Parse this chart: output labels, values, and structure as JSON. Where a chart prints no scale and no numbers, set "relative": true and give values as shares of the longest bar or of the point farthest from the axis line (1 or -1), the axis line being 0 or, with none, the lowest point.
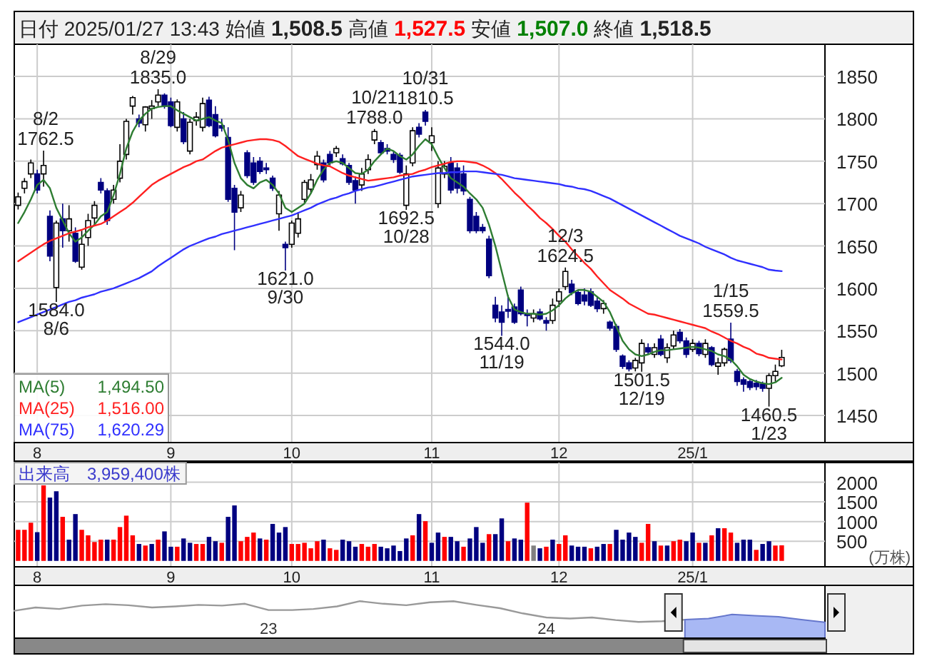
{
  "chart_data": [
    {
      "type": "candlestick",
      "title": "日付 2025/01/27 13:43 始値 1,508.5 高値 1,527.5 安値 1,507.0 終値 1,518.5",
      "categories": [
        null,
        null,
        null,
        "8",
        null,
        null,
        null,
        null,
        null,
        null,
        null,
        null,
        null,
        null,
        null,
        null,
        null,
        null,
        null,
        null,
        null,
        null,
        null,
        null,
        "9",
        null,
        null,
        null,
        null,
        null,
        null,
        null,
        null,
        null,
        null,
        null,
        null,
        null,
        null,
        null,
        null,
        null,
        null,
        "10",
        null,
        null,
        null,
        null,
        null,
        null,
        null,
        null,
        null,
        null,
        null,
        null,
        null,
        null,
        null,
        null,
        null,
        null,
        null,
        null,
        null,
        "11",
        null,
        null,
        null,
        null,
        null,
        null,
        null,
        null,
        null,
        null,
        null,
        null,
        null,
        null,
        null,
        null,
        null,
        null,
        null,
        "12",
        null,
        null,
        null,
        null,
        null,
        null,
        null,
        null,
        null,
        null,
        null,
        null,
        null,
        null,
        null,
        null,
        null,
        null,
        null,
        null,
        "25/1",
        null,
        null,
        null,
        null,
        null,
        null,
        null,
        null,
        null,
        null,
        null,
        null,
        null,
        null
      ],
      "ohlc": [
        [
          1698,
          1713,
          1693,
          1708
        ],
        [
          1718,
          1730,
          1712,
          1726
        ],
        [
          1735,
          1752,
          1730,
          1748
        ],
        [
          1735,
          1740,
          1712,
          1716
        ],
        [
          1735,
          1762.5,
          1720,
          1745
        ],
        [
          1685,
          1692,
          1632,
          1638
        ],
        [
          1601,
          1680,
          1584.0,
          1677
        ],
        [
          1682,
          1700,
          1648,
          1668
        ],
        [
          1668,
          1698,
          1655,
          1682
        ],
        [
          1665,
          1672,
          1630,
          1632
        ],
        [
          1625,
          1668,
          1622,
          1652
        ],
        [
          1660,
          1688,
          1650,
          1680
        ],
        [
          1683,
          1703,
          1675,
          1698
        ],
        [
          1725,
          1730,
          1712,
          1716
        ],
        [
          1715,
          1718,
          1675,
          1680
        ],
        [
          1705,
          1722,
          1700,
          1716
        ],
        [
          1730,
          1770,
          1725,
          1750
        ],
        [
          1758,
          1800,
          1752,
          1797
        ],
        [
          1815,
          1827,
          1805,
          1825
        ],
        [
          1800,
          1805,
          1790,
          1795
        ],
        [
          1793,
          1815,
          1785,
          1814
        ],
        [
          1812,
          1822,
          1800,
          1815
        ],
        [
          1820,
          1835.0,
          1815,
          1828
        ],
        [
          1828,
          1830,
          1812,
          1815
        ],
        [
          1820,
          1825,
          1790,
          1792
        ],
        [
          1790,
          1823,
          1785,
          1820
        ],
        [
          1800,
          1808,
          1770,
          1773
        ],
        [
          1762,
          1800,
          1758,
          1796
        ],
        [
          1798,
          1808,
          1792,
          1802
        ],
        [
          1790,
          1825,
          1785,
          1818
        ],
        [
          1822,
          1826,
          1790,
          1792
        ],
        [
          1805,
          1815,
          1778,
          1780
        ],
        [
          1792,
          1800,
          1785,
          1789
        ],
        [
          1778,
          1790,
          1702,
          1705
        ],
        [
          1718,
          1722,
          1645,
          1690
        ],
        [
          1695,
          1715,
          1690,
          1710
        ],
        [
          1760,
          1763,
          1730,
          1733
        ],
        [
          1748,
          1755,
          1722,
          1725
        ],
        [
          1750,
          1755,
          1735,
          1738
        ],
        [
          1742,
          1748,
          1735,
          1740
        ],
        [
          1730,
          1733,
          1715,
          1718
        ],
        [
          1688,
          1715,
          1668,
          1710
        ],
        [
          1652,
          1655,
          1621.0,
          1648
        ],
        [
          1652,
          1680,
          1648,
          1677
        ],
        [
          1665,
          1690,
          1660,
          1682
        ],
        [
          1705,
          1728,
          1700,
          1725
        ],
        [
          1717,
          1735,
          1712,
          1728
        ],
        [
          1746,
          1762,
          1740,
          1756
        ],
        [
          1748,
          1752,
          1725,
          1728
        ],
        [
          1758,
          1762,
          1745,
          1748
        ],
        [
          1760,
          1768,
          1755,
          1765
        ],
        [
          1753,
          1758,
          1745,
          1747
        ],
        [
          1745,
          1748,
          1722,
          1725
        ],
        [
          1727,
          1732,
          1700,
          1716
        ],
        [
          1722,
          1742,
          1715,
          1735
        ],
        [
          1740,
          1758,
          1735,
          1752
        ],
        [
          1775,
          1788.0,
          1770,
          1785
        ],
        [
          1772,
          1775,
          1758,
          1760
        ],
        [
          1765,
          1770,
          1758,
          1762
        ],
        [
          1758,
          1762,
          1748,
          1752
        ],
        [
          1757,
          1760,
          1735,
          1737
        ],
        [
          1698,
          1745,
          1692.5,
          1735
        ],
        [
          1748,
          1790,
          1744,
          1786
        ],
        [
          1790,
          1795,
          1778,
          1782
        ],
        [
          1808,
          1810.5,
          1792,
          1797
        ],
        [
          1772,
          1790,
          1762,
          1780
        ],
        [
          1700,
          1750,
          1695,
          1742
        ],
        [
          1735,
          1750,
          1730,
          1744
        ],
        [
          1748,
          1755,
          1712,
          1716
        ],
        [
          1742,
          1748,
          1712,
          1718
        ],
        [
          1735,
          1745,
          1710,
          1715
        ],
        [
          1705,
          1708,
          1665,
          1668
        ],
        [
          1685,
          1690,
          1665,
          1668
        ],
        [
          1672,
          1676,
          1665,
          1668
        ],
        [
          1658,
          1662,
          1612,
          1615
        ],
        [
          1580,
          1590,
          1560,
          1565
        ],
        [
          1572,
          1580,
          1544.0,
          1560
        ],
        [
          1575,
          1592,
          1565,
          1573
        ],
        [
          1578,
          1582,
          1558,
          1560
        ],
        [
          1598,
          1602,
          1568,
          1570
        ],
        [
          1570,
          1575,
          1555,
          1568
        ],
        [
          1565,
          1575,
          1560,
          1570
        ],
        [
          1572,
          1576,
          1562,
          1564
        ],
        [
          1562,
          1566,
          1550,
          1559
        ],
        [
          1562,
          1588,
          1558,
          1580
        ],
        [
          1585,
          1600,
          1578,
          1596
        ],
        [
          1602,
          1624.5,
          1598,
          1620
        ],
        [
          1605,
          1610,
          1592,
          1595
        ],
        [
          1595,
          1598,
          1580,
          1582
        ],
        [
          1592,
          1600,
          1580,
          1585
        ],
        [
          1596,
          1600,
          1578,
          1580
        ],
        [
          1585,
          1590,
          1572,
          1576
        ],
        [
          1576,
          1586,
          1570,
          1582
        ],
        [
          1560,
          1562,
          1550,
          1553
        ],
        [
          1555,
          1558,
          1525,
          1528
        ],
        [
          1520,
          1522,
          1505,
          1508
        ],
        [
          1512,
          1515,
          1502,
          1505
        ],
        [
          1506,
          1518,
          1502,
          1515
        ],
        [
          1512,
          1540,
          1501.5,
          1535
        ],
        [
          1530,
          1535,
          1522,
          1525
        ],
        [
          1522,
          1535,
          1518,
          1530
        ],
        [
          1540,
          1545,
          1520,
          1522
        ],
        [
          1518,
          1535,
          1512,
          1530
        ],
        [
          1532,
          1550,
          1528,
          1545
        ],
        [
          1548,
          1552,
          1535,
          1538
        ],
        [
          1538,
          1542,
          1518,
          1522
        ],
        [
          1528,
          1540,
          1525,
          1535
        ],
        [
          1535,
          1538,
          1520,
          1523
        ],
        [
          1522,
          1540,
          1518,
          1535
        ],
        [
          1530,
          1532,
          1508,
          1510
        ],
        [
          1508,
          1518,
          1498,
          1512
        ],
        [
          1512,
          1530,
          1508,
          1528
        ],
        [
          1540,
          1559.5,
          1512,
          1515
        ],
        [
          1502,
          1505,
          1485,
          1490
        ],
        [
          1492,
          1495,
          1478,
          1487
        ],
        [
          1490,
          1492,
          1480,
          1483
        ],
        [
          1488,
          1492,
          1480,
          1484
        ],
        [
          1487,
          1490,
          1478,
          1482
        ],
        [
          1482,
          1500,
          1460.5,
          1497
        ],
        [
          1497,
          1510,
          1490,
          1502
        ],
        [
          1508.5,
          1527.5,
          1507.0,
          1518.5
        ]
      ],
      "series": [
        {
          "type": "line",
          "name": "MA(5) 1,494.50",
          "color": "#2e7d32",
          "values": [
            1677,
            1690,
            1705,
            1722,
            1728,
            1718,
            1695,
            1680,
            1665,
            1655,
            1660,
            1668,
            1675,
            1685,
            1690,
            1710,
            1735,
            1765,
            1785,
            1798,
            1806,
            1812,
            1814,
            1815,
            1815,
            1810,
            1806,
            1802,
            1798,
            1800,
            1802,
            1798,
            1795,
            1775,
            1748,
            1730,
            1722,
            1718,
            1725,
            1728,
            1722,
            1712,
            1695,
            1690,
            1695,
            1700,
            1712,
            1728,
            1740,
            1748,
            1750,
            1748,
            1742,
            1736,
            1735,
            1740,
            1750,
            1758,
            1765,
            1762,
            1756,
            1752,
            1758,
            1768,
            1776,
            1770,
            1755,
            1742,
            1730,
            1725,
            1720,
            1712,
            1705,
            1695,
            1675,
            1650,
            1620,
            1590,
            1575,
            1572,
            1570,
            1570,
            1569,
            1570,
            1574,
            1580,
            1588,
            1594,
            1598,
            1598,
            1596,
            1590,
            1584,
            1572,
            1555,
            1538,
            1528,
            1522,
            1520,
            1522,
            1525,
            1527,
            1527,
            1528,
            1529,
            1530,
            1531,
            1530,
            1528,
            1526,
            1522,
            1520,
            1516,
            1508,
            1498,
            1493,
            1490,
            1488,
            1487,
            1489,
            1494.5
          ]
        },
        {
          "type": "line",
          "name": "MA(25) 1,516.00",
          "color": "#ff2020",
          "values": [
            1632,
            1637,
            1642,
            1647,
            1652,
            1656,
            1659,
            1662,
            1665,
            1667,
            1669,
            1672,
            1674,
            1676,
            1680,
            1685,
            1690,
            1695,
            1701,
            1708,
            1715,
            1722,
            1727,
            1731,
            1735,
            1739,
            1743,
            1746,
            1750,
            1752,
            1757,
            1762,
            1766,
            1768,
            1770,
            1772,
            1774,
            1775,
            1776,
            1776,
            1775,
            1773,
            1768,
            1762,
            1756,
            1753,
            1750,
            1747,
            1745,
            1744,
            1740,
            1736,
            1733,
            1731,
            1729,
            1727,
            1728,
            1729,
            1730,
            1731,
            1733,
            1734,
            1735,
            1738,
            1740,
            1743,
            1745,
            1747,
            1749,
            1750,
            1750,
            1749,
            1748,
            1745,
            1741,
            1736,
            1729,
            1721,
            1713,
            1706,
            1698,
            1691,
            1683,
            1677,
            1670,
            1662,
            1655,
            1646,
            1638,
            1630,
            1623,
            1614,
            1606,
            1598,
            1593,
            1588,
            1582,
            1578,
            1574,
            1570,
            1569,
            1567,
            1565,
            1563,
            1561,
            1559,
            1557,
            1555,
            1553,
            1549,
            1546,
            1542,
            1538,
            1535,
            1531,
            1528,
            1523,
            1521,
            1518,
            1517,
            1516.0
          ]
        },
        {
          "type": "line",
          "name": "MA(75) 1,620.29",
          "color": "#3030ff",
          "values": [
            1560,
            1563,
            1566,
            1569,
            1572,
            1575,
            1578,
            1581,
            1584,
            1586,
            1589,
            1591,
            1593,
            1596,
            1598,
            1600,
            1603,
            1606,
            1609,
            1612,
            1616,
            1620,
            1626,
            1631,
            1636,
            1641,
            1646,
            1650,
            1653,
            1656,
            1659,
            1661,
            1664,
            1666,
            1668,
            1670,
            1672,
            1674,
            1676,
            1678,
            1680,
            1682,
            1684,
            1686,
            1689,
            1692,
            1695,
            1699,
            1702,
            1705,
            1707,
            1710,
            1712,
            1715,
            1717,
            1719,
            1720,
            1722,
            1724,
            1726,
            1728,
            1730,
            1732,
            1733,
            1734,
            1735,
            1736,
            1736,
            1737,
            1737,
            1738,
            1738,
            1738,
            1737,
            1736,
            1735,
            1734,
            1732,
            1730,
            1729,
            1728,
            1727,
            1726,
            1725,
            1724,
            1723,
            1721,
            1720,
            1718,
            1717,
            1715,
            1712,
            1709,
            1706,
            1702,
            1698,
            1694,
            1690,
            1686,
            1682,
            1678,
            1674,
            1670,
            1666,
            1662,
            1659,
            1656,
            1653,
            1649,
            1646,
            1643,
            1640,
            1636,
            1633,
            1631,
            1629,
            1627,
            1625,
            1622,
            1621,
            1620.29
          ]
        }
      ],
      "ylim": [
        1418,
        1888
      ],
      "yticks": [
        1450,
        1500,
        1550,
        1600,
        1650,
        1700,
        1750,
        1800,
        1850
      ],
      "grid": true,
      "annotations": [
        {
          "text": "8/2\n1762.5",
          "y": 1762.5
        },
        {
          "text": "1584.0\n8/6",
          "y": 1584.0
        },
        {
          "text": "8/29\n1835.0",
          "y": 1835.0
        },
        {
          "text": "1621.0\n9/30",
          "y": 1621.0
        },
        {
          "text": "10/21\n1788.0",
          "y": 1788.0
        },
        {
          "text": "1692.5\n10/28",
          "y": 1692.5
        },
        {
          "text": "10/31\n1810.5",
          "y": 1810.5
        },
        {
          "text": "1544.0\n11/19",
          "y": 1544.0
        },
        {
          "text": "12/3\n1624.5",
          "y": 1624.5
        },
        {
          "text": "1501.5\n12/19",
          "y": 1501.5
        },
        {
          "text": "1/15\n1559.5",
          "y": 1559.5
        },
        {
          "text": "1460.5\n1/23",
          "y": 1460.5
        }
      ]
    },
    {
      "type": "bar",
      "title": "出来高　3,959,400株",
      "ylabel": "(万株)",
      "categories": [
        null,
        null,
        null,
        "8",
        null,
        null,
        null,
        null,
        null,
        null,
        null,
        null,
        null,
        null,
        null,
        null,
        null,
        null,
        null,
        null,
        null,
        null,
        null,
        null,
        "9",
        null,
        null,
        null,
        null,
        null,
        null,
        null,
        null,
        null,
        null,
        null,
        null,
        null,
        null,
        null,
        null,
        null,
        null,
        "10",
        null,
        null,
        null,
        null,
        null,
        null,
        null,
        null,
        null,
        null,
        null,
        null,
        null,
        null,
        null,
        null,
        null,
        null,
        null,
        null,
        null,
        "11",
        null,
        null,
        null,
        null,
        null,
        null,
        null,
        null,
        null,
        null,
        null,
        null,
        null,
        null,
        null,
        null,
        null,
        null,
        null,
        "12",
        null,
        null,
        null,
        null,
        null,
        null,
        null,
        null,
        null,
        null,
        null,
        null,
        null,
        null,
        null,
        null,
        null,
        null,
        null,
        null,
        "25/1",
        null,
        null,
        null,
        null,
        null,
        null,
        null,
        null,
        null,
        null,
        null,
        null,
        null,
        null
      ],
      "values": [
        790,
        790,
        970,
        730,
        1920,
        1610,
        1770,
        1120,
        540,
        1190,
        790,
        650,
        480,
        540,
        540,
        540,
        860,
        1150,
        650,
        430,
        390,
        430,
        540,
        750,
        360,
        360,
        570,
        460,
        430,
        430,
        610,
        500,
        460,
        1120,
        1410,
        500,
        610,
        720,
        570,
        540,
        940,
        720,
        860,
        430,
        430,
        460,
        320,
        500,
        540,
        320,
        280,
        540,
        500,
        360,
        430,
        360,
        430,
        360,
        320,
        390,
        250,
        570,
        650,
        1190,
        1010,
        460,
        720,
        610,
        610,
        500,
        360,
        570,
        860,
        460,
        680,
        680,
        1080,
        500,
        570,
        540,
        1480,
        390,
        320,
        360,
        540,
        430,
        650,
        390,
        360,
        360,
        320,
        360,
        430,
        430,
        790,
        540,
        720,
        610,
        460,
        940,
        500,
        390,
        390,
        500,
        540,
        500,
        720,
        460,
        460,
        650,
        830,
        830,
        720,
        460,
        540,
        540,
        280,
        430,
        500,
        390,
        395.94
      ],
      "colors": [
        "#ff0000",
        "#ff0000",
        "#ff0000",
        "#000080",
        "#ff0000",
        "#000080",
        "#000080",
        "#ff0000",
        "#000080",
        "#000080",
        "#ff0000",
        "#ff0000",
        "#ff0000",
        "#ff0000",
        "#000080",
        "#ff0000",
        "#ff0000",
        "#ff0000",
        "#ff0000",
        "#000080",
        "#ff0000",
        "#000080",
        "#ff0000",
        "#000080",
        "#000080",
        "#ff0000",
        "#000080",
        "#000080",
        "#ff0000",
        "#ff0000",
        "#000080",
        "#000080",
        "#ff0000",
        "#000080",
        "#000080",
        "#ff0000",
        "#ff0000",
        "#ff0000",
        "#000080",
        "#ff0000",
        "#000080",
        "#000080",
        "#000080",
        "#ff0000",
        "#ff0000",
        "#ff0000",
        "#ff0000",
        "#ff0000",
        "#000080",
        "#ff0000",
        "#ff0000",
        "#000080",
        "#000080",
        "#000080",
        "#ff0000",
        "#ff0000",
        "#ff0000",
        "#000080",
        "#000080",
        "#000080",
        "#000080",
        "#000080",
        "#ff0000",
        "#000080",
        "#ff0000",
        "#000080",
        "#000080",
        "#ff0000",
        "#000080",
        "#000080",
        "#ff0000",
        "#000080",
        "#000080",
        "#000080",
        "#ff0000",
        "#000080",
        "#000080",
        "#ff0000",
        "#000080",
        "#000080",
        "#ff0000",
        "#808080",
        "#000080",
        "#ff0000",
        "#000080",
        "#ff0000",
        "#ff0000",
        "#000080",
        "#000080",
        "#000080",
        "#ff0000",
        "#000080",
        "#000080",
        "#ff0000",
        "#000080",
        "#000080",
        "#000080",
        "#000080",
        "#ff0000",
        "#ff0000",
        "#000080",
        "#ff0000",
        "#000080",
        "#ff0000",
        "#ff0000",
        "#000080",
        "#000080",
        "#ff0000",
        "#000080",
        "#ff0000",
        "#000080",
        "#ff0000",
        "#ff0000",
        "#000080",
        "#000080",
        "#000080",
        "#ff0000",
        "#000080",
        "#000080",
        "#ff0000",
        "#ff0000"
      ],
      "ylim": [
        -150,
        2500
      ],
      "yticks": [
        500,
        1000,
        1500,
        2000
      ],
      "grid": true
    },
    {
      "type": "line",
      "relative": true,
      "x": [
        "2022-02",
        "2022-03",
        "2022-04",
        "2022-05",
        "2022-06",
        "2022-07",
        "2022-08",
        "2022-09",
        "2022-10",
        "2022-11",
        "2022-12",
        "2023-01",
        "2023-02",
        "2023-03",
        "2023-04",
        "2023-05",
        "2023-06",
        "2023-07",
        "2023-08",
        "2023-09",
        "2023-10",
        "2023-11",
        "2023-12",
        "2024-01",
        "2024-02",
        "2024-03",
        "2024-04",
        "2024-05",
        "2024-06",
        "2024-07",
        "2024-08",
        "2024-09",
        "2024-10",
        "2024-11",
        "2024-12",
        "2025-01"
      ],
      "xlim": [
        "2022-02",
        "2025-01"
      ],
      "xticks": [
        {
          "value": "2023-01",
          "label": "23"
        },
        {
          "value": "2024-01",
          "label": "24"
        }
      ],
      "series": [
        {
          "type": "line",
          "color": "#999999",
          "values": [
            0.74,
            0.83,
            0.79,
            0.88,
            0.92,
            0.89,
            0.83,
            0.86,
            0.9,
            0.88,
            0.93,
            0.76,
            0.76,
            0.79,
            0.86,
            1,
            0.93,
            0.89,
            0.97,
            1,
            0.9,
            0.81,
            0.67,
            0.56,
            0.53,
            0.56,
            0.49,
            0.44,
            0.46,
            0.5,
            null,
            null,
            null,
            null,
            null,
            null
          ]
        },
        {
          "type": "area",
          "color": "#a8b8f4",
          "values": [
            null,
            null,
            null,
            null,
            null,
            null,
            null,
            null,
            null,
            null,
            null,
            null,
            null,
            null,
            null,
            null,
            null,
            null,
            null,
            null,
            null,
            null,
            null,
            null,
            null,
            null,
            null,
            null,
            null,
            0.5,
            0.53,
            0.64,
            0.61,
            0.58,
            0.5,
            0.43
          ]
        }
      ]
    }
  ]
}
